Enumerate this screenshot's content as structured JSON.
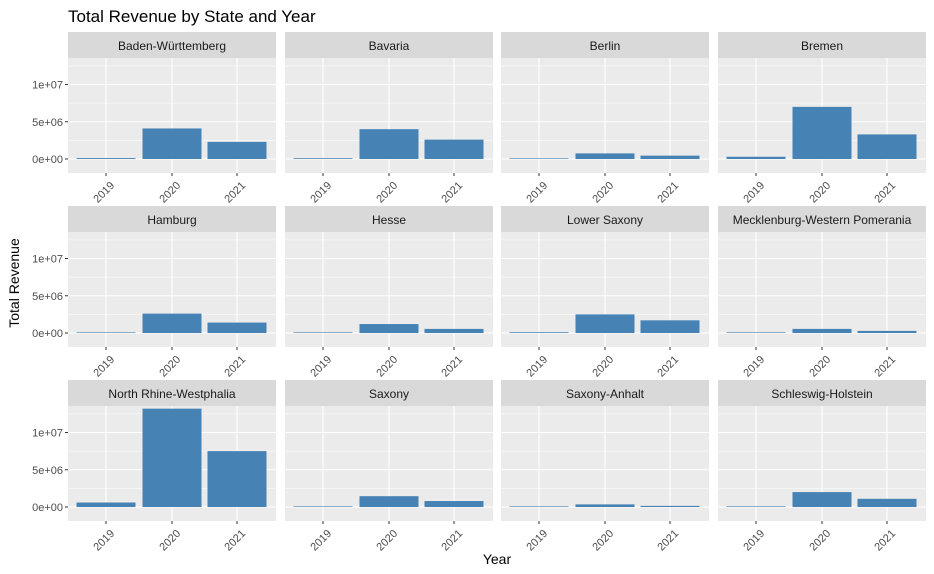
{
  "chart_data": {
    "type": "bar",
    "title": "Total Revenue by State and Year",
    "xlabel": "Year",
    "ylabel": "Total Revenue",
    "categories": [
      "2019",
      "2020",
      "2021"
    ],
    "y_ticks": [
      0,
      5000000,
      10000000
    ],
    "y_tick_labels": [
      "0e+00",
      "5e+06",
      "1e+07"
    ],
    "ylim": [
      0,
      13200000
    ],
    "bar_color": "#4682B4",
    "panel_background": "#EBEBEB",
    "strip_background": "#D9D9D9",
    "grid": true,
    "legend": "none",
    "facets": [
      {
        "name": "Baden-Württemberg",
        "values": [
          120000,
          4100000,
          2300000
        ]
      },
      {
        "name": "Bavaria",
        "values": [
          100000,
          4000000,
          2600000
        ]
      },
      {
        "name": "Berlin",
        "values": [
          20000,
          750000,
          450000
        ]
      },
      {
        "name": "Bremen",
        "values": [
          300000,
          7000000,
          3300000
        ]
      },
      {
        "name": "Hamburg",
        "values": [
          60000,
          2600000,
          1400000
        ]
      },
      {
        "name": "Hesse",
        "values": [
          50000,
          1200000,
          550000
        ]
      },
      {
        "name": "Lower Saxony",
        "values": [
          100000,
          2500000,
          1700000
        ]
      },
      {
        "name": "Mecklenburg-Western Pomerania",
        "values": [
          40000,
          550000,
          280000
        ]
      },
      {
        "name": "North Rhine-Westphalia",
        "values": [
          600000,
          13200000,
          7500000
        ]
      },
      {
        "name": "Saxony",
        "values": [
          60000,
          1450000,
          800000
        ]
      },
      {
        "name": "Saxony-Anhalt",
        "values": [
          10000,
          350000,
          150000
        ]
      },
      {
        "name": "Schleswig-Holstein",
        "values": [
          80000,
          2000000,
          1100000
        ]
      }
    ]
  }
}
